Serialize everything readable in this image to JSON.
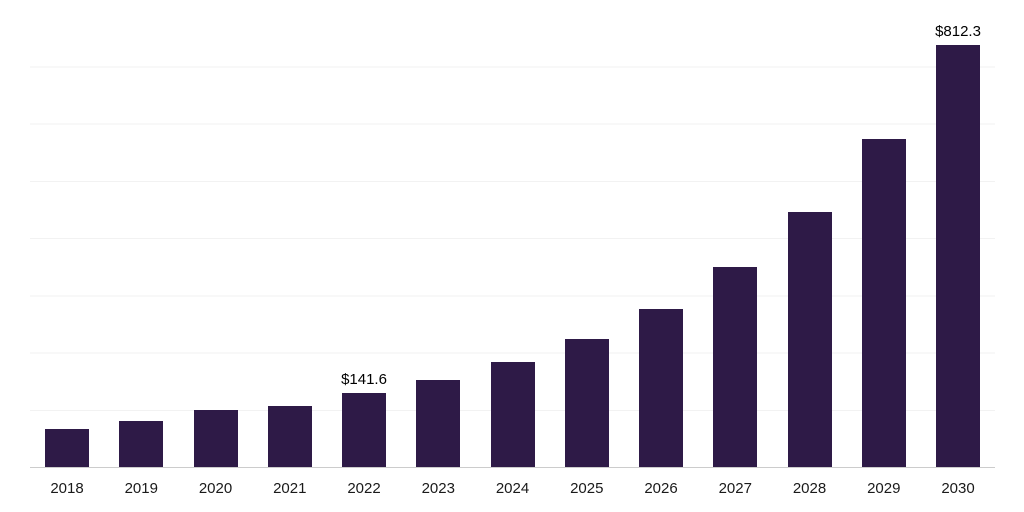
{
  "chart_data": {
    "type": "bar",
    "title": "",
    "xlabel": "",
    "ylabel": "",
    "categories": [
      "2018",
      "2019",
      "2020",
      "2021",
      "2022",
      "2023",
      "2024",
      "2025",
      "2026",
      "2027",
      "2028",
      "2029",
      "2030"
    ],
    "values": [
      73,
      88,
      109,
      117,
      141.6,
      167,
      202,
      246,
      305,
      386,
      492,
      632,
      812.3
    ],
    "data_labels": [
      "",
      "",
      "",
      "",
      "$141.6",
      "",
      "",
      "",
      "",
      "",
      "",
      "",
      "$812.3"
    ],
    "ylim": [
      0,
      880
    ],
    "grid": "horizontal-light",
    "legend": "none",
    "colors": {
      "bar": "#2e1a47",
      "value_label": "#000000",
      "tick_label": "#1a1a1a",
      "gridline": "#f2f2f2",
      "axis_line": "#cccccc",
      "background": "#ffffff"
    }
  }
}
